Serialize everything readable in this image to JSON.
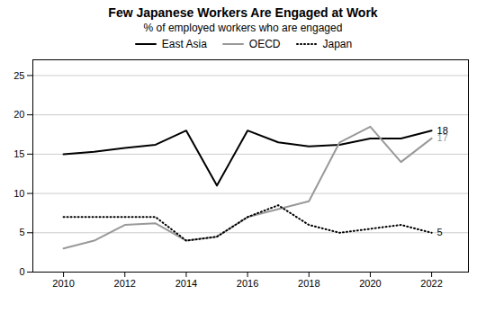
{
  "chart_data": {
    "type": "line",
    "title": "Few Japanese Workers Are Engaged at Work",
    "subtitle": "% of employed workers who are engaged",
    "x": [
      2010,
      2011,
      2012,
      2013,
      2014,
      2015,
      2016,
      2017,
      2018,
      2019,
      2020,
      2021,
      2022
    ],
    "series": [
      {
        "name": "East Asia",
        "color": "#000000",
        "line_style": "solid",
        "values": [
          15,
          15.3,
          15.8,
          16.2,
          18,
          11,
          18,
          16.5,
          16,
          16.2,
          17,
          17,
          18
        ]
      },
      {
        "name": "OECD",
        "color": "#999999",
        "line_style": "solid",
        "values": [
          3,
          4,
          6,
          6.2,
          4,
          4.5,
          7,
          8,
          9,
          16.5,
          18.5,
          14,
          17
        ]
      },
      {
        "name": "Japan",
        "color": "#000000",
        "line_style": "dotted",
        "values": [
          7,
          7,
          7,
          7,
          4,
          4.5,
          7,
          8.5,
          6,
          5,
          5.5,
          6,
          5
        ]
      }
    ],
    "annotations": [
      {
        "text": "18",
        "x": 2022,
        "y": 18,
        "color": "#000000"
      },
      {
        "text": "17",
        "x": 2022,
        "y": 17,
        "color": "#999999"
      },
      {
        "text": "5",
        "x": 2022,
        "y": 5,
        "color": "#000000"
      }
    ],
    "xlim": [
      2009.0,
      2023.2
    ],
    "xticks": [
      2010,
      2012,
      2014,
      2016,
      2018,
      2020,
      2022
    ],
    "ylim": [
      0,
      27
    ],
    "yticks": [
      0,
      5,
      10,
      15,
      20,
      25
    ],
    "grid": true,
    "legend": "top"
  }
}
